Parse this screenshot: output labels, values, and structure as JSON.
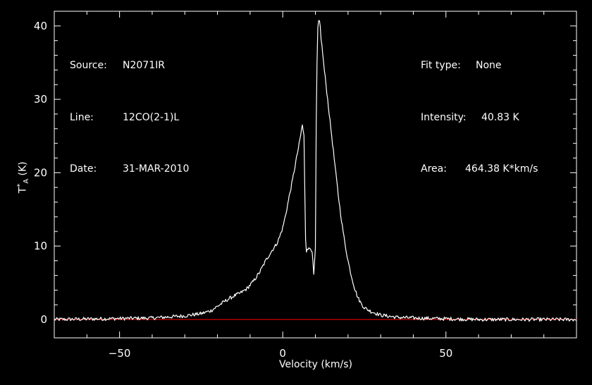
{
  "info_left": {
    "source_label": "Source:",
    "source_value": "N2071IR",
    "line_label": "Line:",
    "line_value": "12CO(2-1)L",
    "date_label": "Date:",
    "date_value": "31-MAR-2010"
  },
  "info_right": {
    "fit_label": "Fit type:",
    "fit_value": "None",
    "intensity_label": "Intensity:",
    "intensity_value": "40.83 K",
    "area_label": "Area:",
    "area_value": "464.38 K*km/s"
  },
  "colors": {
    "background": "#000000",
    "axis": "#ffffff",
    "spectrum": "#ffffff",
    "baseline": "#ff0000"
  },
  "chart_data": {
    "type": "line",
    "xlabel": "Velocity (km/s)",
    "ylabel_main": "T",
    "ylabel_sub": "A",
    "ylabel_sup": "*",
    "ylabel_unit": " (K)",
    "xlim": [
      -70,
      90
    ],
    "ylim": [
      -2.5,
      42
    ],
    "xticks": [
      -50,
      0,
      50
    ],
    "yticks": [
      0,
      10,
      20,
      30,
      40
    ],
    "grid": false,
    "baseline_y": 0,
    "noise_amplitude": 0.25,
    "series": [
      {
        "x": [
          -70,
          -40,
          -30,
          -25,
          -22,
          -20,
          -17,
          -15,
          -13,
          -11,
          -9,
          -7,
          -5,
          -3,
          -2,
          -1,
          0,
          1,
          2,
          3,
          4,
          5,
          6,
          6.5,
          7,
          7.2,
          7.5,
          8,
          8.5,
          9,
          9.5,
          10,
          10.3,
          10.7,
          11.1,
          11.4,
          11.8,
          12.2,
          12.6,
          13,
          13.5,
          14,
          15,
          16,
          17,
          18,
          19,
          20,
          21,
          22,
          23,
          24,
          25,
          27,
          30,
          35,
          40,
          50,
          60,
          90
        ],
        "y": [
          0,
          0.2,
          0.5,
          0.8,
          1.2,
          1.8,
          2.7,
          3.2,
          3.6,
          4.2,
          5.2,
          6.5,
          8.2,
          9.6,
          10.2,
          11.2,
          12.5,
          14.5,
          16.8,
          19,
          21.5,
          23.8,
          26.5,
          25,
          11,
          9.2,
          9.8,
          9.6,
          9.7,
          9.4,
          6,
          9.5,
          30,
          39.5,
          40.8,
          40.5,
          38,
          36.5,
          34.5,
          33,
          31,
          29,
          25,
          21,
          17,
          13.5,
          10.5,
          8,
          6,
          4.3,
          3,
          2.2,
          1.6,
          1.1,
          0.6,
          0.3,
          0.2,
          0.1,
          0,
          0
        ]
      }
    ]
  }
}
